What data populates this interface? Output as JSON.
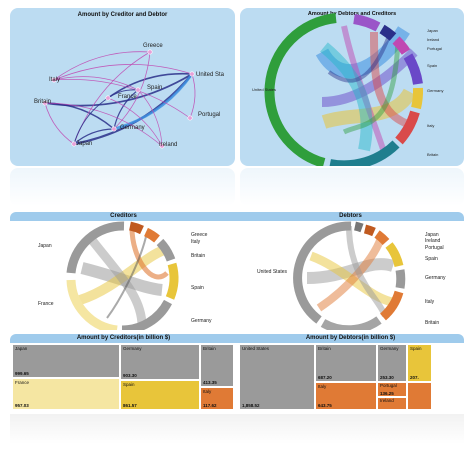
{
  "colors": {
    "panel_blue": "#bcdcf2",
    "panel_blue_dark": "#9fcbec",
    "teal": "#1fb5c8",
    "grey": "#9a9a9a",
    "yellow": "#e8c53a",
    "pale_yellow": "#f5e6a2",
    "orange": "#e07a35",
    "green": "#2f9e3c",
    "blue": "#3d8fe0",
    "navy": "#2a2f8a",
    "violet": "#6a48c8",
    "magenta": "#c048b2",
    "red": "#d94a4a"
  },
  "panels": {
    "network": {
      "title": "Amount by Creditor and Debtor",
      "nodes": [
        {
          "id": "greece",
          "label": "Greece"
        },
        {
          "id": "italy",
          "label": "Italy"
        },
        {
          "id": "us",
          "label": "United Sta"
        },
        {
          "id": "britain",
          "label": "Britain"
        },
        {
          "id": "spain",
          "label": "Spain"
        },
        {
          "id": "portugal",
          "label": "Portugal"
        },
        {
          "id": "germany",
          "label": "Germany"
        },
        {
          "id": "france",
          "label": "France"
        },
        {
          "id": "ireland",
          "label": "Ireland"
        },
        {
          "id": "japan",
          "label": "Japan"
        }
      ]
    },
    "chord_top": {
      "title": "Amount by Debtors and Creditors",
      "labels": [
        "Japan",
        "Ireland",
        "Portugal",
        "Spain",
        "Germany",
        "Italy",
        "Britain",
        "United States"
      ]
    },
    "chord_creditors": {
      "title": "Creditors",
      "labels": [
        "Greece",
        "Italy",
        "Britain",
        "Spain",
        "Germany",
        "France",
        "Japan"
      ]
    },
    "chord_debtors": {
      "title": "Debtors",
      "labels": [
        "Japan",
        "Ireland",
        "Portugal",
        "Spain",
        "Germany",
        "Italy",
        "Britain",
        "United States"
      ]
    },
    "treemap_creditors": {
      "title": "Amount by Creditors(in billion $)",
      "cells": [
        {
          "label": "Japan",
          "value": "999.65",
          "color": "#9a9a9a"
        },
        {
          "label": "France",
          "value": "957.03",
          "color": "#f5e6a2"
        },
        {
          "label": "Germany",
          "value": "903.30",
          "color": "#9a9a9a"
        },
        {
          "label": "Spain",
          "value": "861.57",
          "color": "#e8c53a"
        },
        {
          "label": "Britain",
          "value": "413.35",
          "color": "#9a9a9a"
        },
        {
          "label": "Italy",
          "value": "117.62",
          "color": "#e07a35"
        }
      ]
    },
    "treemap_debtors": {
      "title": "Amount by Debtors(in billion $)",
      "cells": [
        {
          "label": "United States",
          "value": "1,858.52",
          "color": "#9a9a9a"
        },
        {
          "label": "Britain",
          "value": "687.20",
          "color": "#9a9a9a"
        },
        {
          "label": "Italy",
          "value": "643.75",
          "color": "#e07a35"
        },
        {
          "label": "Germany",
          "value": "253.30",
          "color": "#9a9a9a"
        },
        {
          "label": "Portugal",
          "value": "136.25",
          "color": "#e07a35"
        },
        {
          "label": "Ireland",
          "value": "",
          "color": "#e07a35"
        },
        {
          "label": "Spain",
          "value": "207.",
          "color": "#e8c53a"
        }
      ]
    }
  },
  "chart_data": [
    {
      "type": "network",
      "title": "Amount by Creditor and Debtor",
      "nodes": [
        "Greece",
        "Italy",
        "United Sta",
        "Britain",
        "Spain",
        "Portugal",
        "Germany",
        "France",
        "Ireland",
        "Japan"
      ]
    },
    {
      "type": "chord",
      "title": "Amount by Debtors and Creditors",
      "labels": [
        "Japan",
        "Ireland",
        "Portugal",
        "Spain",
        "Germany",
        "Italy",
        "Britain",
        "United States"
      ]
    },
    {
      "type": "chord",
      "title": "Creditors",
      "labels": [
        "Greece",
        "Italy",
        "Britain",
        "Spain",
        "Germany",
        "France",
        "Japan"
      ]
    },
    {
      "type": "chord",
      "title": "Debtors",
      "labels": [
        "Japan",
        "Ireland",
        "Portugal",
        "Spain",
        "Germany",
        "Italy",
        "Britain",
        "United States"
      ]
    },
    {
      "type": "treemap",
      "title": "Amount by Creditors(in billion $)",
      "categories": [
        "Japan",
        "France",
        "Germany",
        "Spain",
        "Britain",
        "Italy"
      ],
      "values": [
        999.65,
        957.03,
        903.3,
        861.57,
        413.35,
        117.62
      ]
    },
    {
      "type": "treemap",
      "title": "Amount by Debtors(in billion $)",
      "categories": [
        "United States",
        "Britain",
        "Italy",
        "Germany",
        "Portugal",
        "Spain"
      ],
      "values": [
        1858.52,
        687.2,
        643.75,
        253.3,
        136.25,
        207
      ]
    }
  ]
}
